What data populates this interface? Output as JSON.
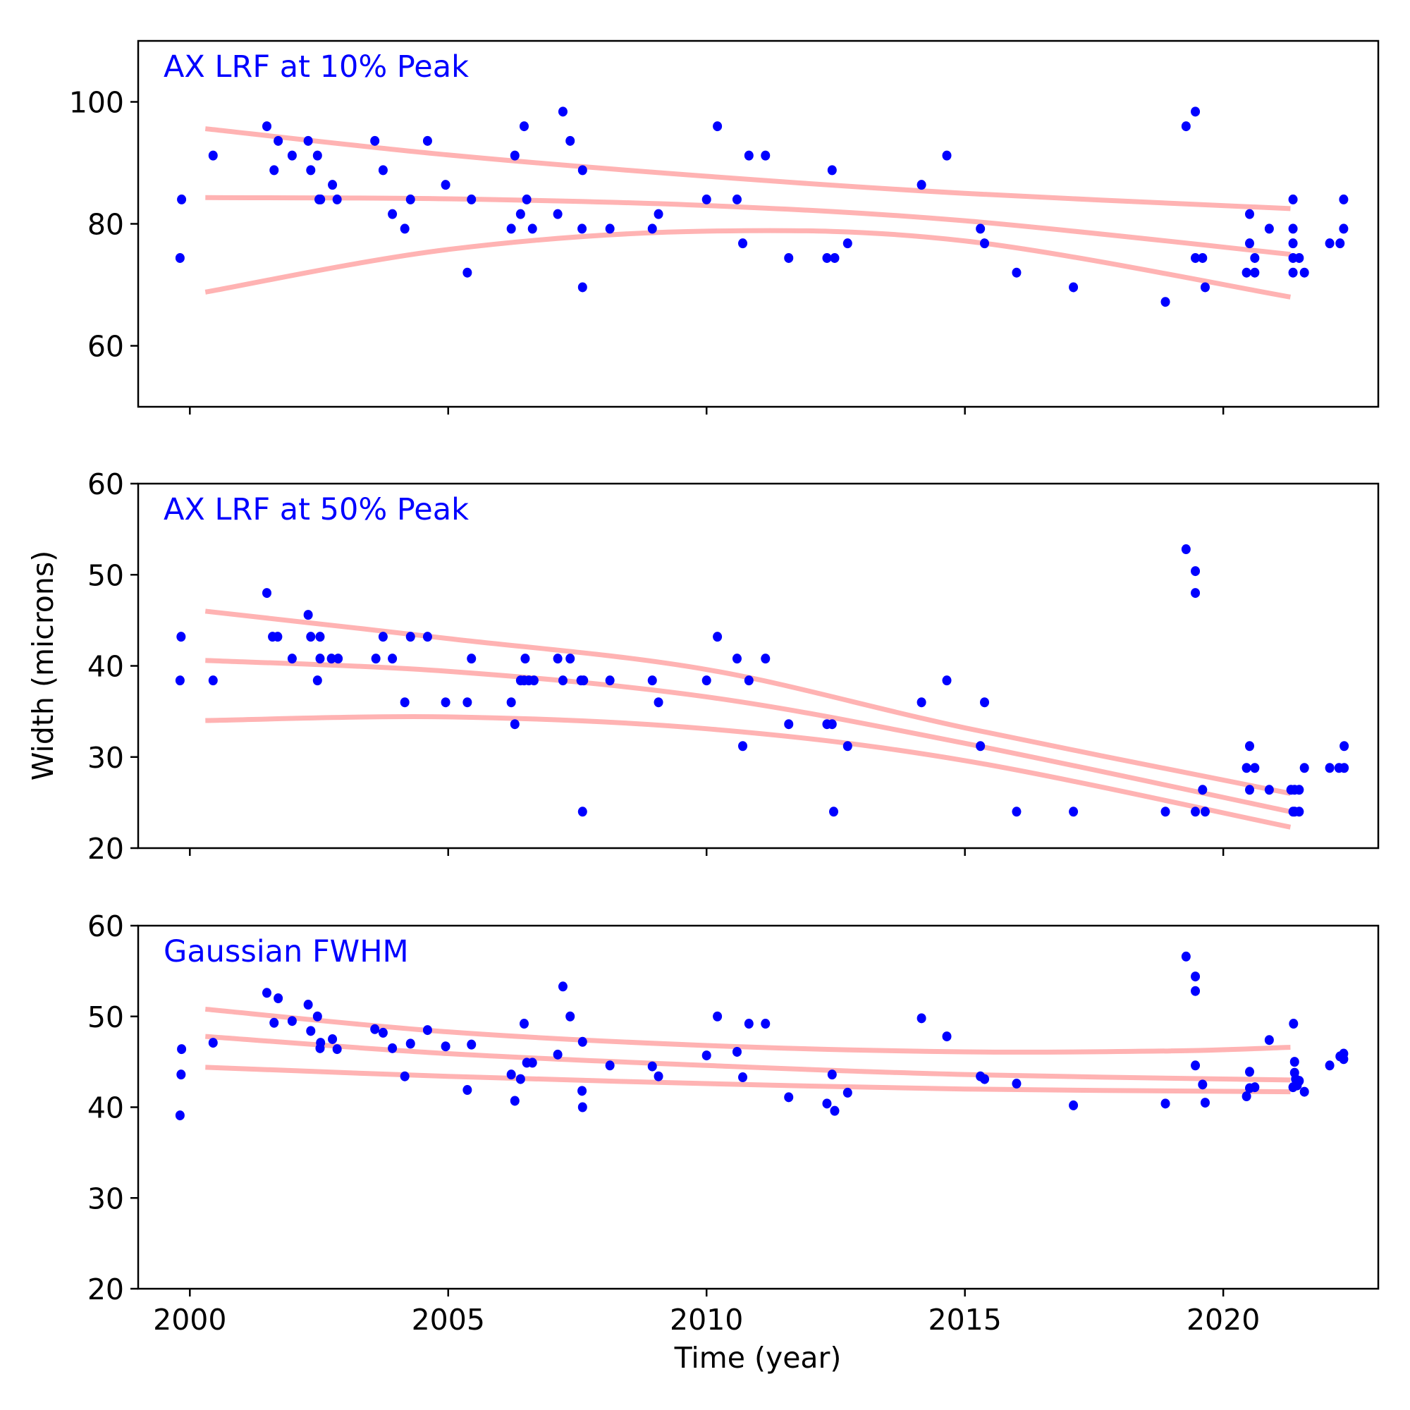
{
  "chart_data": {
    "type": "scatter",
    "xlabel": "Time (year)",
    "ylabel": "Width (microns)",
    "xlim": [
      1999.0,
      2023.0
    ],
    "xticks": [
      2000,
      2005,
      2010,
      2015,
      2020
    ],
    "xtick_labels": [
      "2000",
      "2005",
      "2010",
      "2015",
      "2020"
    ],
    "point_color": "#0000ff",
    "fit_color": "#ffb3b3",
    "title_color": "#0000ff",
    "grid": false,
    "panels": [
      {
        "title": "AX LRF at 10% Peak",
        "ylim": [
          50,
          110
        ],
        "yticks": [
          60,
          80,
          100
        ],
        "ytick_labels": [
          "60",
          "80",
          "100"
        ],
        "show_xtick_labels": false,
        "points": {
          "x": [
            1999.81,
            1999.84,
            2000.45,
            2001.49,
            2001.63,
            2001.71,
            2001.98,
            2002.29,
            2002.34,
            2002.47,
            2002.5,
            2002.53,
            2002.76,
            2002.85,
            2003.58,
            2003.74,
            2003.92,
            2004.16,
            2004.27,
            2004.6,
            2004.95,
            2005.37,
            2005.45,
            2006.22,
            2006.29,
            2006.4,
            2006.47,
            2006.52,
            2006.63,
            2007.12,
            2007.22,
            2007.36,
            2007.59,
            2007.6,
            2007.6,
            2008.13,
            2008.95,
            2009.07,
            2010.0,
            2010.21,
            2010.59,
            2010.7,
            2010.82,
            2011.14,
            2011.59,
            2012.33,
            2012.43,
            2012.48,
            2012.73,
            2014.16,
            2014.65,
            2015.3,
            2015.38,
            2016.0,
            2017.1,
            2018.88,
            2019.28,
            2019.46,
            2019.46,
            2019.6,
            2019.65,
            2020.45,
            2020.51,
            2020.51,
            2020.61,
            2020.61,
            2020.89,
            2021.35,
            2021.35,
            2021.35,
            2021.35,
            2021.35,
            2021.47,
            2021.57,
            2022.06,
            2022.26,
            2022.33,
            2022.33
          ],
          "y": [
            74.4,
            84,
            91.2,
            96,
            88.8,
            93.6,
            91.2,
            93.6,
            88.8,
            91.2,
            84,
            84,
            86.4,
            84,
            93.6,
            88.8,
            81.6,
            79.2,
            84,
            93.6,
            86.4,
            72,
            84,
            79.2,
            91.2,
            81.6,
            96,
            84,
            79.2,
            81.6,
            98.4,
            93.6,
            79.2,
            88.8,
            69.6,
            79.2,
            79.2,
            81.6,
            84,
            96,
            84,
            76.8,
            91.2,
            91.2,
            74.4,
            74.4,
            88.8,
            74.4,
            76.8,
            86.4,
            91.2,
            79.2,
            76.8,
            72,
            69.6,
            67.2,
            96,
            98.4,
            74.4,
            74.4,
            69.6,
            72,
            81.6,
            76.8,
            74.4,
            72,
            79.2,
            84,
            79.2,
            76.8,
            74.4,
            72,
            74.4,
            72,
            76.8,
            76.8,
            84,
            79.2
          ]
        },
        "fits": [
          {
            "name": "upper",
            "x": [
              2000.3,
              2005,
              2010,
              2015,
              2021.3
            ],
            "y": [
              95.6,
              91.3,
              87.8,
              85.0,
              82.5
            ]
          },
          {
            "name": "middle",
            "x": [
              2000.3,
              2005,
              2010,
              2015,
              2021.3
            ],
            "y": [
              84.3,
              84.1,
              83.0,
              80.5,
              75.0
            ]
          },
          {
            "name": "lower",
            "x": [
              2000.3,
              2005,
              2010,
              2015,
              2021.3
            ],
            "y": [
              68.8,
              75.8,
              78.8,
              77.2,
              68.0
            ]
          }
        ]
      },
      {
        "title": "AX LRF at 50% Peak",
        "ylim": [
          20,
          60
        ],
        "yticks": [
          20,
          30,
          40,
          50,
          60
        ],
        "ytick_labels": [
          "20",
          "30",
          "40",
          "50",
          "60"
        ],
        "show_xtick_labels": false,
        "points": {
          "x": [
            1999.81,
            1999.83,
            2000.45,
            2001.49,
            2001.6,
            2001.7,
            2001.98,
            2002.29,
            2002.34,
            2002.47,
            2002.52,
            2002.52,
            2002.74,
            2002.87,
            2003.6,
            2003.74,
            2003.92,
            2004.16,
            2004.27,
            2004.6,
            2004.95,
            2005.37,
            2005.45,
            2006.22,
            2006.29,
            2006.4,
            2006.47,
            2006.49,
            2006.56,
            2006.66,
            2007.12,
            2007.22,
            2007.36,
            2007.57,
            2007.62,
            2007.6,
            2008.13,
            2008.95,
            2009.07,
            2010.0,
            2010.21,
            2010.59,
            2010.7,
            2010.82,
            2011.14,
            2011.59,
            2012.33,
            2012.43,
            2012.46,
            2012.73,
            2014.16,
            2014.65,
            2015.3,
            2015.38,
            2016.0,
            2017.1,
            2018.88,
            2019.28,
            2019.46,
            2019.46,
            2019.46,
            2019.6,
            2019.65,
            2020.45,
            2020.51,
            2020.51,
            2020.61,
            2020.89,
            2021.31,
            2021.35,
            2021.38,
            2021.38,
            2021.47,
            2021.47,
            2021.57,
            2022.06,
            2022.24,
            2022.34,
            2022.34
          ],
          "y": [
            38.4,
            43.2,
            38.4,
            48,
            43.2,
            43.2,
            40.8,
            45.6,
            43.2,
            38.4,
            43.2,
            40.8,
            40.8,
            40.8,
            40.8,
            43.2,
            40.8,
            36,
            43.2,
            43.2,
            36,
            36,
            40.8,
            36,
            33.6,
            38.4,
            38.4,
            40.8,
            38.4,
            38.4,
            40.8,
            38.4,
            40.8,
            38.4,
            38.4,
            24,
            38.4,
            38.4,
            36,
            38.4,
            43.2,
            40.8,
            31.2,
            38.4,
            40.8,
            33.6,
            33.6,
            33.6,
            24,
            31.2,
            36,
            38.4,
            31.2,
            36,
            24,
            24,
            24,
            52.8,
            50.4,
            48,
            24,
            26.4,
            24,
            28.8,
            31.2,
            26.4,
            28.8,
            26.4,
            26.4,
            24,
            26.4,
            24,
            26.4,
            24,
            28.8,
            28.8,
            28.8,
            28.8,
            31.2
          ]
        },
        "fits": [
          {
            "name": "upper",
            "x": [
              2000.3,
              2005,
              2010,
              2015,
              2021.3
            ],
            "y": [
              46.0,
              43.0,
              39.6,
              33.2,
              26.0
            ]
          },
          {
            "name": "middle",
            "x": [
              2000.3,
              2005,
              2010,
              2015,
              2021.3
            ],
            "y": [
              40.6,
              39.4,
              36.6,
              31.5,
              24.0
            ]
          },
          {
            "name": "lower",
            "x": [
              2000.3,
              2005,
              2010,
              2015,
              2021.3
            ],
            "y": [
              34.0,
              34.4,
              33.1,
              29.6,
              22.3
            ]
          }
        ]
      },
      {
        "title": "Gaussian FWHM",
        "ylim": [
          20,
          60
        ],
        "yticks": [
          20,
          30,
          40,
          50,
          60
        ],
        "ytick_labels": [
          "20",
          "30",
          "40",
          "50",
          "60"
        ],
        "show_xtick_labels": true,
        "points": {
          "x": [
            1999.81,
            1999.83,
            1999.84,
            2000.45,
            2001.49,
            2001.63,
            2001.71,
            2001.98,
            2002.29,
            2002.34,
            2002.47,
            2002.52,
            2002.53,
            2002.76,
            2002.85,
            2003.58,
            2003.74,
            2003.92,
            2004.16,
            2004.27,
            2004.6,
            2004.95,
            2005.37,
            2005.45,
            2006.22,
            2006.29,
            2006.4,
            2006.47,
            2006.52,
            2006.63,
            2007.12,
            2007.22,
            2007.36,
            2007.59,
            2007.6,
            2007.6,
            2008.13,
            2008.95,
            2009.07,
            2010.0,
            2010.21,
            2010.59,
            2010.7,
            2010.82,
            2011.14,
            2011.59,
            2012.33,
            2012.43,
            2012.48,
            2012.73,
            2014.16,
            2014.65,
            2015.3,
            2015.38,
            2016.0,
            2017.1,
            2018.88,
            2019.28,
            2019.46,
            2019.46,
            2019.46,
            2019.6,
            2019.65,
            2020.45,
            2020.51,
            2020.51,
            2020.61,
            2020.89,
            2021.36,
            2021.38,
            2021.38,
            2021.4,
            2021.43,
            2021.35,
            2021.47,
            2021.57,
            2022.06,
            2022.26,
            2022.33,
            2022.33
          ],
          "y": [
            39.1,
            43.6,
            46.4,
            47.1,
            52.6,
            49.3,
            52.0,
            49.5,
            51.3,
            48.4,
            50.0,
            46.5,
            47.1,
            47.5,
            46.4,
            48.6,
            48.2,
            46.5,
            43.4,
            47.0,
            48.5,
            46.7,
            41.9,
            46.9,
            43.6,
            40.7,
            43.1,
            49.2,
            44.9,
            44.9,
            45.8,
            53.3,
            50.0,
            41.8,
            47.2,
            40.0,
            44.6,
            44.5,
            43.4,
            45.7,
            50.0,
            46.1,
            43.3,
            49.2,
            49.2,
            41.1,
            40.4,
            43.6,
            39.6,
            41.6,
            49.8,
            47.8,
            43.4,
            43.1,
            42.6,
            40.2,
            40.4,
            56.6,
            54.4,
            52.8,
            44.6,
            42.5,
            40.5,
            41.2,
            43.9,
            42.1,
            42.2,
            47.4,
            49.2,
            45.0,
            43.8,
            43.1,
            42.4,
            42.2,
            42.9,
            41.7,
            44.6,
            45.6,
            45.3,
            45.9
          ]
        },
        "fits": [
          {
            "name": "upper",
            "x": [
              2000.3,
              2005,
              2010,
              2015,
              2019,
              2021.3
            ],
            "y": [
              50.8,
              48.3,
              46.8,
              46.1,
              46.2,
              46.6
            ]
          },
          {
            "name": "middle",
            "x": [
              2000.3,
              2005,
              2010,
              2015,
              2021.3
            ],
            "y": [
              47.8,
              45.9,
              44.6,
              43.6,
              43.0
            ]
          },
          {
            "name": "lower",
            "x": [
              2000.3,
              2005,
              2010,
              2015,
              2021.3
            ],
            "y": [
              44.4,
              43.4,
              42.6,
              42.0,
              41.7
            ]
          }
        ]
      }
    ]
  }
}
